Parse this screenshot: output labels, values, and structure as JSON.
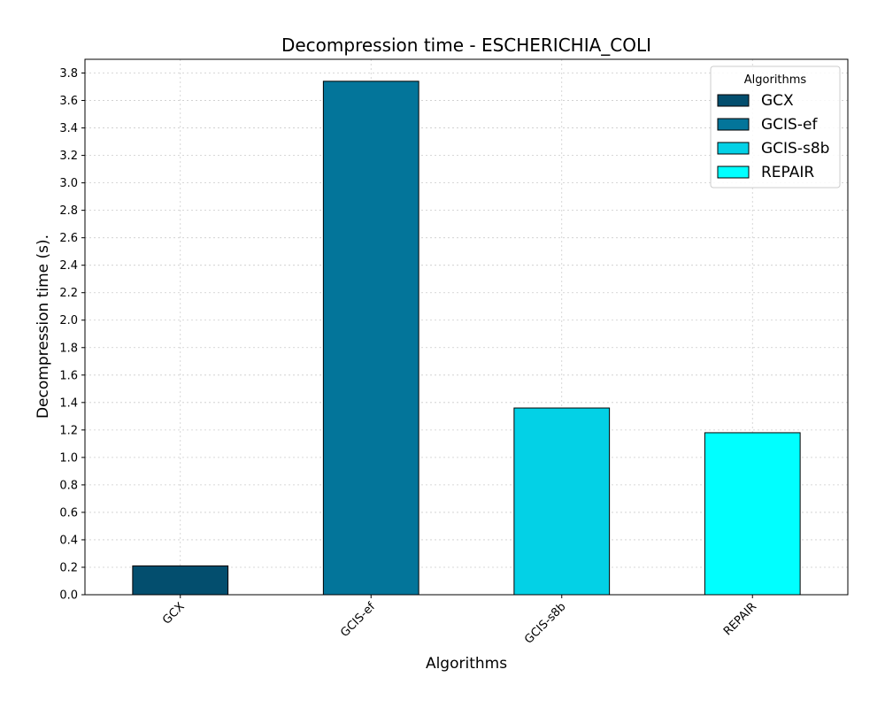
{
  "chart_data": {
    "type": "bar",
    "title": "Decompression time -  ESCHERICHIA_COLI",
    "xlabel": "Algorithms",
    "ylabel": "Decompression time (s).",
    "categories": [
      "GCX",
      "GCIS-ef",
      "GCIS-s8b",
      "REPAIR"
    ],
    "values": [
      0.21,
      3.74,
      1.36,
      1.18
    ],
    "colors": [
      "#034e6e",
      "#03759a",
      "#03d1e6",
      "#00ffff"
    ],
    "ylim": [
      0,
      3.9
    ],
    "yticks": [
      "0.0",
      "0.2",
      "0.4",
      "0.6",
      "0.8",
      "1.0",
      "1.2",
      "1.4",
      "1.6",
      "1.8",
      "2.0",
      "2.2",
      "2.4",
      "2.6",
      "2.8",
      "3.0",
      "3.2",
      "3.4",
      "3.6",
      "3.8"
    ],
    "grid": true,
    "legend": {
      "title": "Algorithms",
      "placement": "top-right",
      "entries": [
        "GCX",
        "GCIS-ef",
        "GCIS-s8b",
        "REPAIR"
      ]
    }
  }
}
